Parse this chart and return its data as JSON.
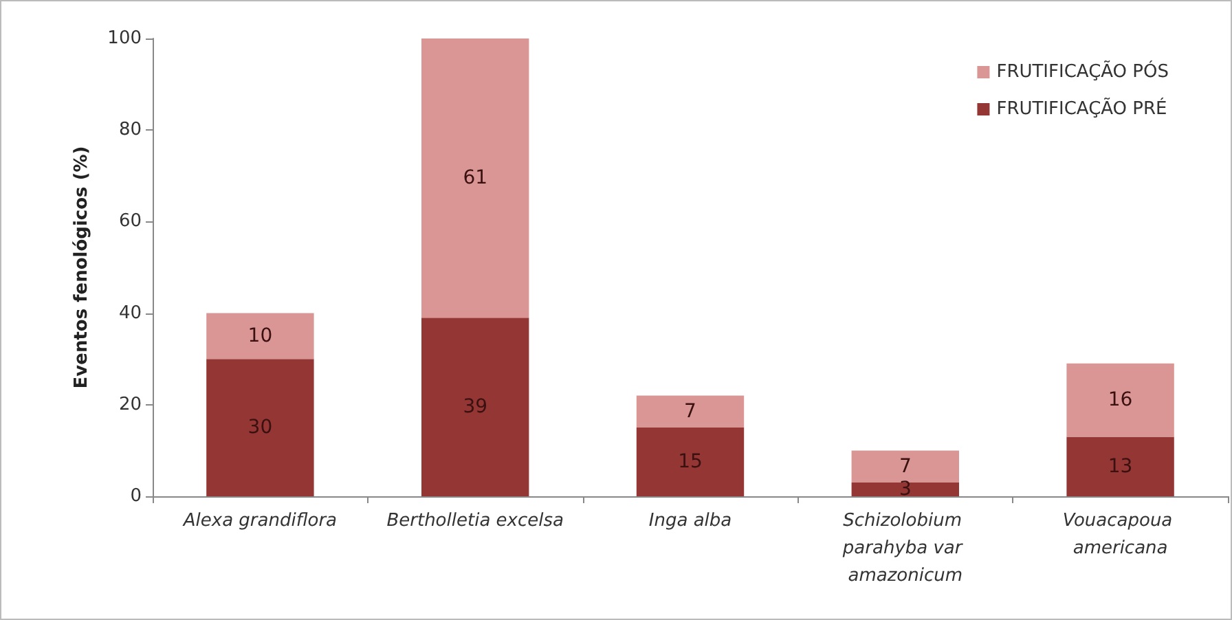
{
  "chart_data": {
    "type": "bar",
    "stacked": true,
    "ylabel": "Eventos fenológicos (%)",
    "categories": [
      "Alexa grandiflora",
      "Bertholletia excelsa",
      "Inga alba",
      "Schizolobium parahyba var amazonicum",
      "Vouacapoua americana"
    ],
    "series": [
      {
        "name": "FRUTIFICAÇÃO PRÉ",
        "color": "#943634",
        "values": [
          30,
          39,
          15,
          3,
          13
        ]
      },
      {
        "name": "FRUTIFICAÇÃO PÓS",
        "color": "#d99694",
        "values": [
          10,
          61,
          7,
          7,
          16
        ]
      }
    ],
    "ylim": [
      0,
      100
    ],
    "yticks": [
      0,
      20,
      40,
      60,
      80,
      100
    ],
    "grid": false,
    "legend": "top right",
    "data_labels": true
  }
}
